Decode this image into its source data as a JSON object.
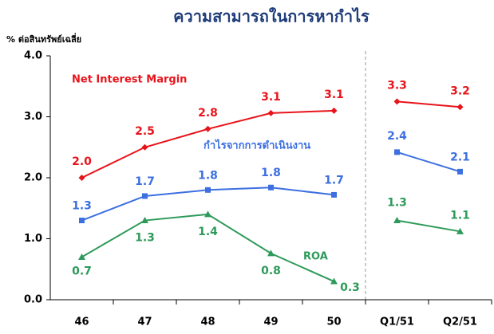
{
  "chart_data": {
    "type": "line",
    "title": "ความสามารถในการหากำไร",
    "y_label": "% ต่อสินทรัพย์เฉลี่ย",
    "categories": [
      "46",
      "47",
      "48",
      "49",
      "50",
      "Q1/51",
      "Q2/51"
    ],
    "ylim": [
      0,
      4
    ],
    "yticks": [
      {
        "value": 0,
        "label": "0.0"
      },
      {
        "value": 1,
        "label": "1.0"
      },
      {
        "value": 2,
        "label": "2.0"
      },
      {
        "value": 3,
        "label": "3.0"
      },
      {
        "value": 4,
        "label": "4.0"
      }
    ],
    "grid": false,
    "series": [
      {
        "name": "Net Interest Margin",
        "color": "#e8141b",
        "marker": "diamond",
        "values": [
          2.0,
          2.5,
          2.8,
          3.06,
          3.1,
          3.25,
          3.16
        ],
        "value_labels": [
          "2.0",
          "2.5",
          "2.8",
          "3.1",
          "3.1",
          "3.3",
          "3.2"
        ]
      },
      {
        "name": "กำไรจากการดำเนินงาน",
        "color": "#3c6fe0",
        "marker": "square",
        "values": [
          1.3,
          1.7,
          1.8,
          1.84,
          1.72,
          2.42,
          2.1
        ],
        "value_labels": [
          "1.3",
          "1.7",
          "1.8",
          "1.8",
          "1.7",
          "2.4",
          "2.1"
        ]
      },
      {
        "name": "ROA",
        "color": "#2e9a5a",
        "marker": "triangle",
        "values": [
          0.7,
          1.3,
          1.4,
          0.76,
          0.3,
          1.3,
          1.12
        ],
        "value_labels": [
          "0.7",
          "1.3",
          "1.4",
          "0.8",
          "0.3",
          "1.3",
          "1.1"
        ]
      }
    ]
  }
}
